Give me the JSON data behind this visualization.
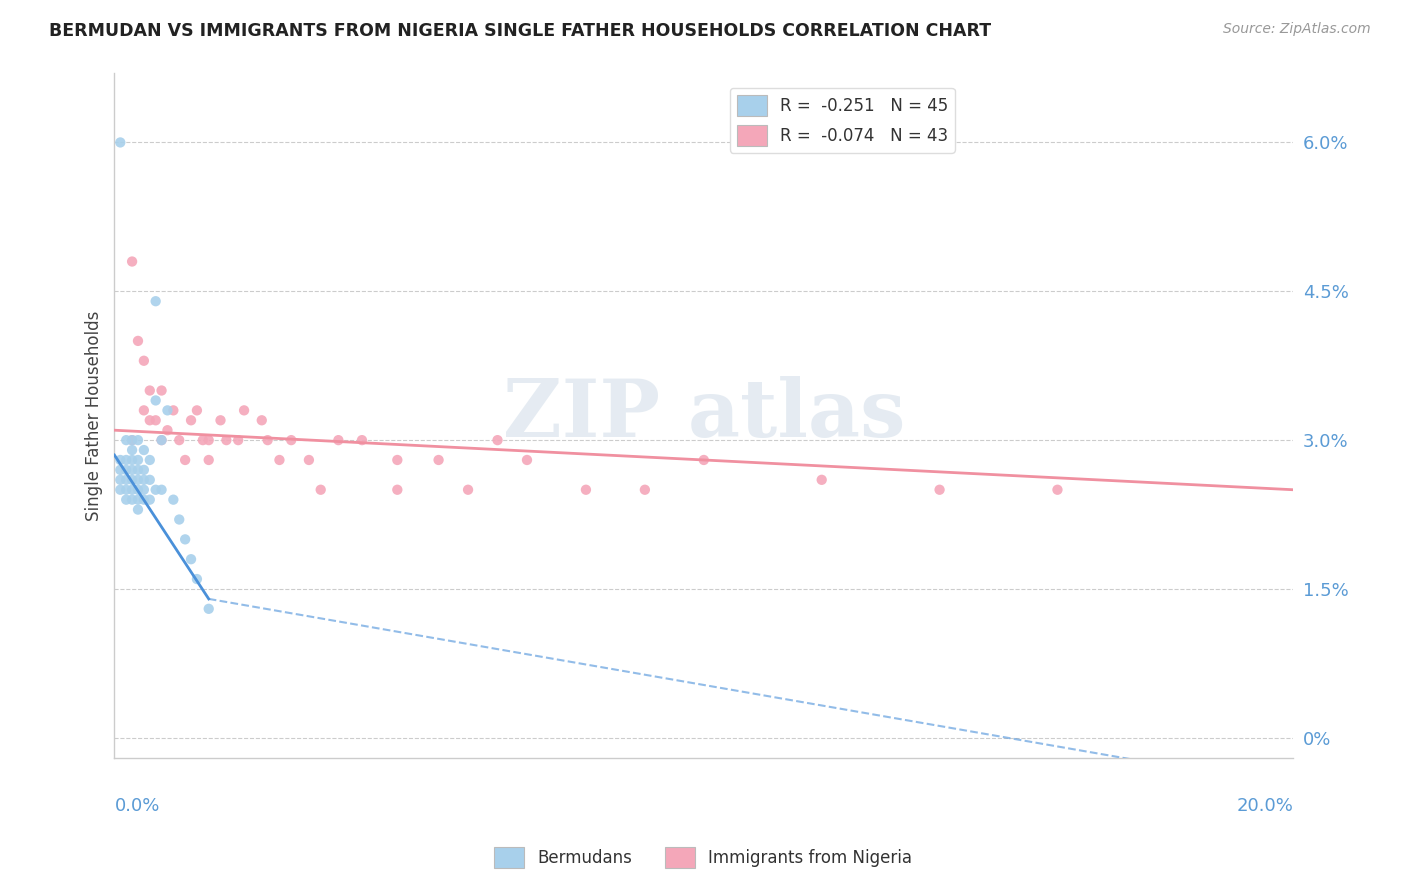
{
  "title": "BERMUDAN VS IMMIGRANTS FROM NIGERIA SINGLE FATHER HOUSEHOLDS CORRELATION CHART",
  "source": "Source: ZipAtlas.com",
  "ylabel": "Single Father Households",
  "right_yticks": [
    "0%",
    "1.5%",
    "3.0%",
    "4.5%",
    "6.0%"
  ],
  "right_ytick_vals": [
    0.0,
    0.015,
    0.03,
    0.045,
    0.06
  ],
  "xlim": [
    0.0,
    0.2
  ],
  "ylim": [
    -0.002,
    0.067
  ],
  "legend_entry1": "R =  -0.251   N = 45",
  "legend_entry2": "R =  -0.074   N = 43",
  "bermudans_color": "#a8d0eb",
  "nigeria_color": "#f4a7b9",
  "trendline_blue": "#4a90d9",
  "trendline_pink": "#f090a0",
  "bermudans_scatter": {
    "x": [
      0.001,
      0.001,
      0.001,
      0.001,
      0.002,
      0.002,
      0.002,
      0.002,
      0.002,
      0.002,
      0.003,
      0.003,
      0.003,
      0.003,
      0.003,
      0.003,
      0.003,
      0.004,
      0.004,
      0.004,
      0.004,
      0.004,
      0.004,
      0.004,
      0.005,
      0.005,
      0.005,
      0.005,
      0.005,
      0.006,
      0.006,
      0.006,
      0.007,
      0.007,
      0.007,
      0.008,
      0.008,
      0.009,
      0.01,
      0.011,
      0.012,
      0.013,
      0.014,
      0.016,
      0.001
    ],
    "y": [
      0.028,
      0.027,
      0.026,
      0.025,
      0.03,
      0.028,
      0.027,
      0.026,
      0.025,
      0.024,
      0.03,
      0.029,
      0.028,
      0.027,
      0.026,
      0.025,
      0.024,
      0.03,
      0.028,
      0.027,
      0.026,
      0.025,
      0.024,
      0.023,
      0.029,
      0.027,
      0.026,
      0.025,
      0.024,
      0.028,
      0.026,
      0.024,
      0.044,
      0.034,
      0.025,
      0.03,
      0.025,
      0.033,
      0.024,
      0.022,
      0.02,
      0.018,
      0.016,
      0.013,
      0.06
    ]
  },
  "nigeria_scatter": {
    "x": [
      0.003,
      0.004,
      0.005,
      0.005,
      0.006,
      0.007,
      0.008,
      0.009,
      0.01,
      0.011,
      0.012,
      0.013,
      0.014,
      0.015,
      0.016,
      0.018,
      0.019,
      0.021,
      0.022,
      0.025,
      0.026,
      0.028,
      0.03,
      0.033,
      0.035,
      0.038,
      0.042,
      0.048,
      0.055,
      0.06,
      0.065,
      0.07,
      0.08,
      0.09,
      0.1,
      0.12,
      0.14,
      0.16,
      0.003,
      0.006,
      0.008,
      0.016,
      0.048
    ],
    "y": [
      0.048,
      0.04,
      0.038,
      0.033,
      0.035,
      0.032,
      0.03,
      0.031,
      0.033,
      0.03,
      0.028,
      0.032,
      0.033,
      0.03,
      0.028,
      0.032,
      0.03,
      0.03,
      0.033,
      0.032,
      0.03,
      0.028,
      0.03,
      0.028,
      0.025,
      0.03,
      0.03,
      0.028,
      0.028,
      0.025,
      0.03,
      0.028,
      0.025,
      0.025,
      0.028,
      0.026,
      0.025,
      0.025,
      0.03,
      0.032,
      0.035,
      0.03,
      0.025
    ]
  },
  "blue_trendline_solid": {
    "x": [
      0.0,
      0.016
    ],
    "y": [
      0.0285,
      0.014
    ]
  },
  "blue_trendline_dashed": {
    "x": [
      0.016,
      0.2
    ],
    "y": [
      0.014,
      -0.005
    ]
  },
  "pink_trendline": {
    "x": [
      0.0,
      0.2
    ],
    "y": [
      0.031,
      0.025
    ]
  },
  "background_color": "#ffffff",
  "grid_color": "#cccccc",
  "watermark_color": "#d0dce8"
}
